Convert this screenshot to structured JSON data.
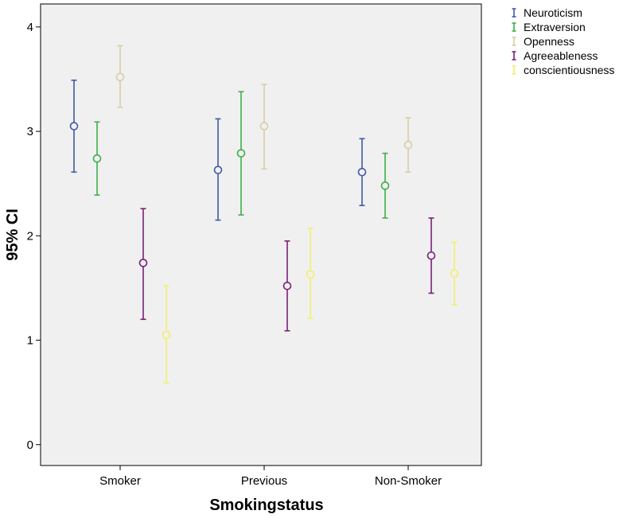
{
  "chart_data": {
    "type": "scatter",
    "title": "",
    "xlabel": "Smokingstatus",
    "ylabel": "95% CI",
    "categories": [
      "Smoker",
      "Previous",
      "Non-Smoker"
    ],
    "ylim": [
      -0.2,
      4.22
    ],
    "yticks": [
      0,
      1,
      2,
      3,
      4
    ],
    "grid": false,
    "legend_position": "top-right outside",
    "plot_background": "#f0f0f0",
    "series": [
      {
        "name": "Neuroticism",
        "color": "#3f5aa8",
        "means": [
          3.05,
          2.63,
          2.61
        ],
        "lower": [
          2.61,
          2.15,
          2.29
        ],
        "upper": [
          3.49,
          3.12,
          2.93
        ]
      },
      {
        "name": "Extraversion",
        "color": "#3fae49",
        "means": [
          2.74,
          2.79,
          2.48
        ],
        "lower": [
          2.39,
          2.2,
          2.17
        ],
        "upper": [
          3.09,
          3.38,
          2.79
        ]
      },
      {
        "name": "Openness",
        "color": "#d5cfa2",
        "means": [
          3.52,
          3.05,
          2.87
        ],
        "lower": [
          3.23,
          2.64,
          2.61
        ],
        "upper": [
          3.82,
          3.45,
          3.13
        ]
      },
      {
        "name": "Agreeableness",
        "color": "#7b1e7a",
        "means": [
          1.74,
          1.52,
          1.81
        ],
        "lower": [
          1.2,
          1.09,
          1.45
        ],
        "upper": [
          2.26,
          1.95,
          2.17
        ]
      },
      {
        "name": "conscientiousness",
        "color": "#f2ef6e",
        "means": [
          1.05,
          1.63,
          1.64
        ],
        "lower": [
          0.59,
          1.21,
          1.34
        ],
        "upper": [
          1.52,
          2.07,
          1.94
        ]
      }
    ]
  }
}
